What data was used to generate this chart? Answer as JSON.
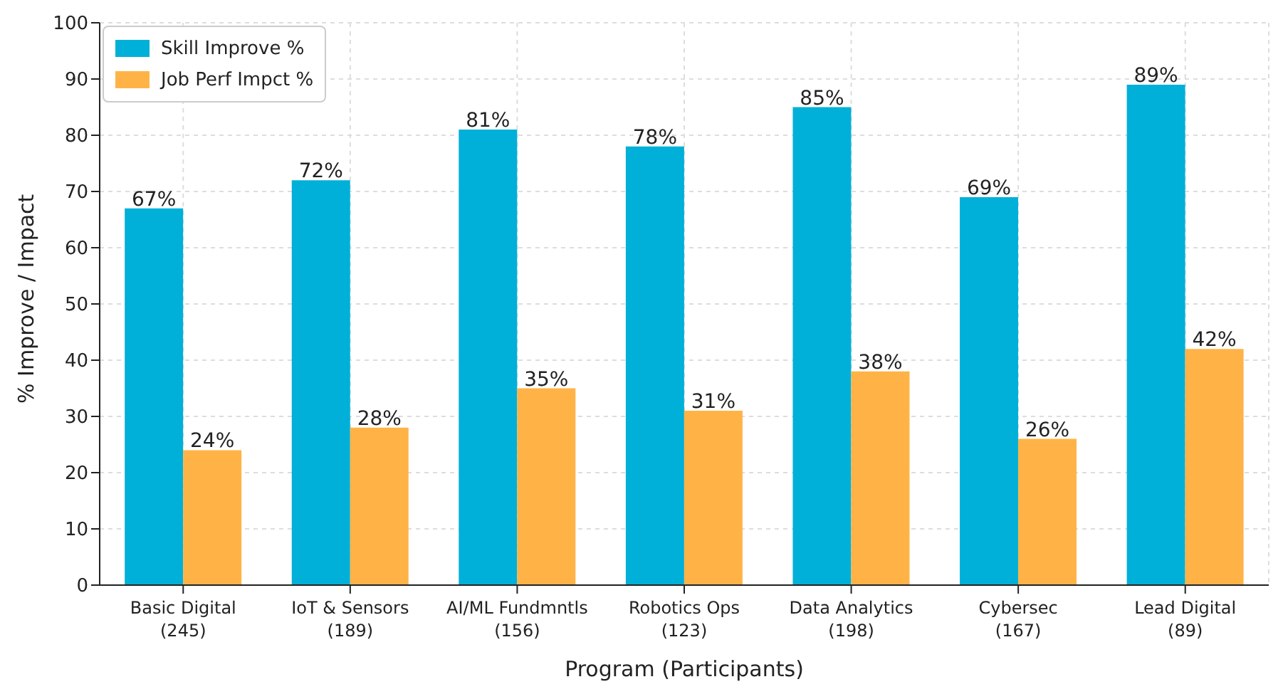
{
  "chart_data": {
    "type": "bar",
    "xlabel": "Program (Participants)",
    "ylabel": "% Improve / Impact",
    "categories": [
      "Basic Digital\n(245)",
      "IoT & Sensors\n(189)",
      "AI/ML Fundmntls\n(156)",
      "Robotics Ops\n(123)",
      "Data Analytics\n(198)",
      "Cybersec\n(167)",
      "Lead Digital\n(89)"
    ],
    "series": [
      {
        "name": "Skill Improve %",
        "color": "#00b0d8",
        "values": [
          67,
          72,
          81,
          78,
          85,
          69,
          89
        ],
        "value_labels": [
          "67%",
          "72%",
          "81%",
          "78%",
          "85%",
          "69%",
          "89%"
        ]
      },
      {
        "name": "Job Perf Impct %",
        "color": "#ffb347",
        "values": [
          24,
          28,
          35,
          31,
          38,
          26,
          42
        ],
        "value_labels": [
          "24%",
          "28%",
          "35%",
          "31%",
          "38%",
          "26%",
          "42%"
        ]
      }
    ],
    "ylim": [
      0,
      100
    ],
    "yticks": [
      0,
      10,
      20,
      30,
      40,
      50,
      60,
      70,
      80,
      90,
      100
    ],
    "grid": true,
    "legend": "top left"
  }
}
